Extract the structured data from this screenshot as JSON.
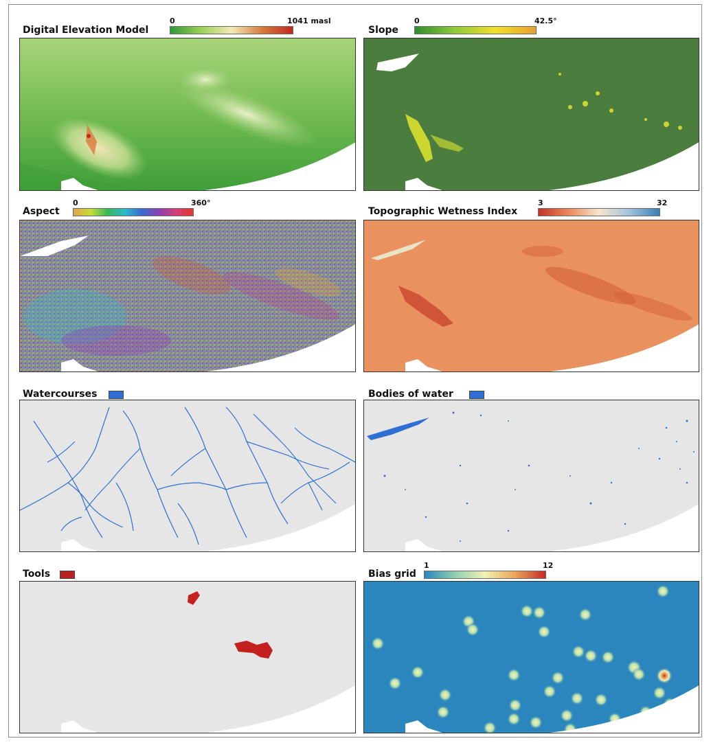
{
  "panels": {
    "dem": {
      "title": "Digital Elevation Model",
      "legend_min": "0",
      "legend_max": "1041 masl",
      "ramp_colors": [
        "#2e9b3a",
        "#9ccf55",
        "#f4eab8",
        "#d87b3c",
        "#c4261e"
      ],
      "base_color": "#4caa3f"
    },
    "slope": {
      "title": "Slope",
      "legend_min": "0",
      "legend_max": "42.5°",
      "ramp_colors": [
        "#2f8f2f",
        "#8fc93a",
        "#f1e02a",
        "#e7a030"
      ],
      "base_color": "#4a7d3e"
    },
    "aspect": {
      "title": "Aspect",
      "legend_min": "0",
      "legend_max": "360°",
      "ramp_colors": [
        "#e4a14a",
        "#c9dc3a",
        "#36b85a",
        "#2fb8c9",
        "#3a6ccf",
        "#8a3fb0",
        "#d23f7a",
        "#e23a2a"
      ],
      "base_color": "#8e8a9a"
    },
    "twi": {
      "title": "Topographic Wetness Index",
      "legend_min": "3",
      "legend_max": "32",
      "ramp_colors": [
        "#c0342a",
        "#e98a5c",
        "#f6e6cc",
        "#9fc4dc",
        "#3c7db3"
      ],
      "base_color": "#e98d5c"
    },
    "watercourses": {
      "title": "Watercourses",
      "swatch_color": "#2f6fd3",
      "base_color": "#e6e6e6"
    },
    "bodies_of_water": {
      "title": "Bodies of water",
      "swatch_color": "#2f6fd3",
      "base_color": "#e6e6e6"
    },
    "tools": {
      "title": "Tools",
      "swatch_color": "#b82222",
      "base_color": "#e6e6e6"
    },
    "bias_grid": {
      "title": "Bias grid",
      "legend_min": "1",
      "legend_max": "12",
      "ramp_colors": [
        "#2a86bd",
        "#8fd0b0",
        "#f4f1b4",
        "#e9a45a",
        "#c42a24"
      ],
      "base_color": "#2a86bd"
    }
  }
}
